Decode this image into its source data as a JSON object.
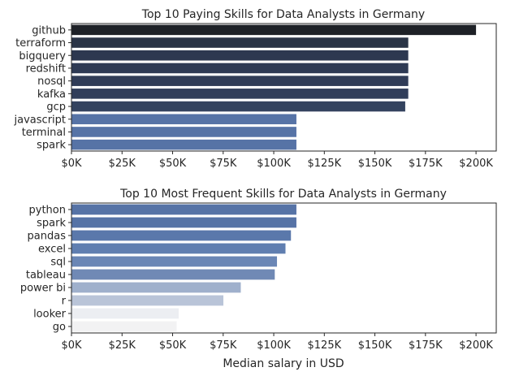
{
  "chart_data": [
    {
      "type": "bar",
      "orientation": "horizontal",
      "title": "Top 10 Paying Skills for Data Analysts in Germany",
      "xlabel": "",
      "ylabel": "",
      "xlim": [
        0,
        210000
      ],
      "xticks": [
        0,
        25000,
        50000,
        75000,
        100000,
        125000,
        150000,
        175000,
        200000
      ],
      "xtick_labels": [
        "$0K",
        "$25K",
        "$50K",
        "$75K",
        "$100K",
        "$125K",
        "$150K",
        "$175K",
        "$200K"
      ],
      "categories": [
        "github",
        "terraform",
        "bigquery",
        "redshift",
        "nosql",
        "kafka",
        "gcp",
        "javascript",
        "terminal",
        "spark"
      ],
      "values": [
        200000,
        166500,
        166500,
        166500,
        166500,
        166500,
        165000,
        111200,
        111200,
        111200
      ],
      "colors": [
        "#1e2127",
        "#2a3446",
        "#2d3850",
        "#2e3a54",
        "#303c57",
        "#313e5a",
        "#34435f",
        "#5673a6",
        "#5673a6",
        "#5673a6"
      ],
      "grid": false,
      "legend": "none"
    },
    {
      "type": "bar",
      "orientation": "horizontal",
      "title": "Top 10 Most Frequent Skills for Data Analysts in Germany",
      "xlabel": "Median salary in USD",
      "ylabel": "",
      "xlim": [
        0,
        210000
      ],
      "xticks": [
        0,
        25000,
        50000,
        75000,
        100000,
        125000,
        150000,
        175000,
        200000
      ],
      "xtick_labels": [
        "$0K",
        "$25K",
        "$50K",
        "$75K",
        "$100K",
        "$125K",
        "$150K",
        "$175K",
        "$200K"
      ],
      "categories": [
        "python",
        "spark",
        "pandas",
        "excel",
        "sql",
        "tableau",
        "power bi",
        "r",
        "looker",
        "go"
      ],
      "values": [
        111200,
        111200,
        108500,
        105800,
        101600,
        100500,
        83700,
        75100,
        53000,
        52000
      ],
      "colors": [
        "#5673a6",
        "#5673a6",
        "#5a78ab",
        "#607eb0",
        "#6a86b5",
        "#7089b5",
        "#9fb0cc",
        "#b9c4d8",
        "#eceef2",
        "#f2f2f3"
      ],
      "grid": false,
      "legend": "none"
    }
  ]
}
